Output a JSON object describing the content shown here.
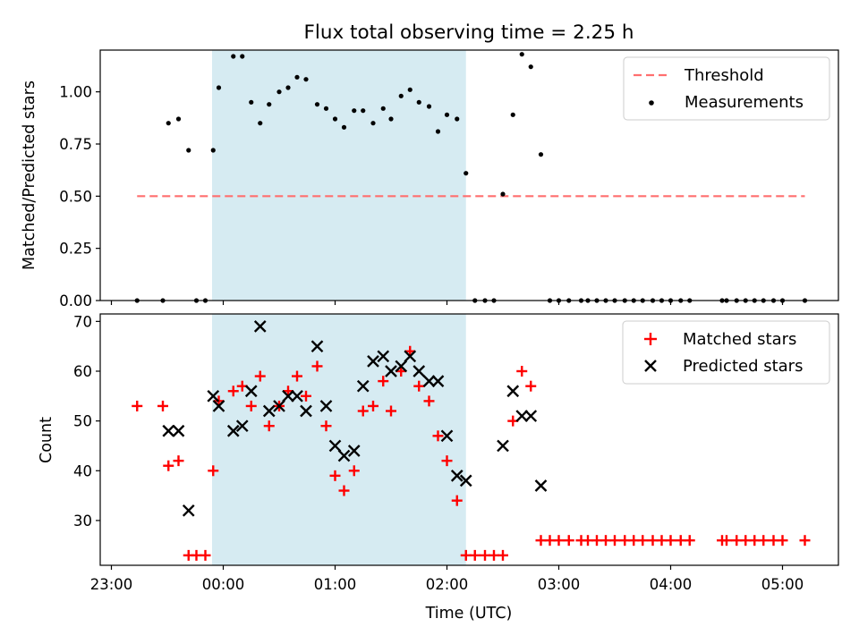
{
  "figure": {
    "title": "Flux total observing time = 2.25 h",
    "xlabel": "Time (UTC)",
    "x_tick_labels": [
      "23:00",
      "00:00",
      "01:00",
      "02:00",
      "03:00",
      "04:00",
      "05:00"
    ]
  },
  "chart_data": [
    {
      "type": "scatter",
      "title": "Flux total observing time = 2.25 h",
      "xlabel": "",
      "ylabel": "Matched/Predicted stars",
      "x_unit": "hours relative to 00:00 UTC",
      "xlim": [
        -1.1,
        5.5
      ],
      "ylim": [
        0.0,
        1.2
      ],
      "y_ticks": [
        0.0,
        0.25,
        0.5,
        0.75,
        1.0
      ],
      "y_tick_labels": [
        "0.00",
        "0.25",
        "0.50",
        "0.75",
        "1.00"
      ],
      "shaded_interval": [
        -0.1,
        2.17
      ],
      "shaded_color": "#add8e6",
      "threshold": {
        "name": "Threshold",
        "value": 0.5,
        "x_range": [
          -0.77,
          5.2
        ],
        "color": "#ff6f6f",
        "style": "dashed"
      },
      "legend": {
        "position": "top-right",
        "entries": [
          "Threshold",
          "Measurements"
        ]
      },
      "series": [
        {
          "name": "Measurements",
          "color": "#000000",
          "marker": "dot",
          "x": [
            -0.77,
            -0.54,
            -0.49,
            -0.4,
            -0.31,
            -0.24,
            -0.16,
            -0.09,
            -0.04,
            0.09,
            0.17,
            0.25,
            0.33,
            0.41,
            0.5,
            0.58,
            0.66,
            0.74,
            0.84,
            0.92,
            1.0,
            1.08,
            1.17,
            1.25,
            1.34,
            1.43,
            1.5,
            1.59,
            1.67,
            1.75,
            1.84,
            1.92,
            2.0,
            2.09,
            2.17,
            2.25,
            2.34,
            2.42,
            2.5,
            2.59,
            2.67,
            2.75,
            2.84,
            2.92,
            3.0,
            3.09,
            3.2,
            3.26,
            3.34,
            3.42,
            3.5,
            3.59,
            3.67,
            3.75,
            3.84,
            3.92,
            4.0,
            4.09,
            4.17,
            4.46,
            4.5,
            4.59,
            4.67,
            4.75,
            4.83,
            4.92,
            5.0,
            5.2
          ],
          "y": [
            0.0,
            0.0,
            0.85,
            0.87,
            0.72,
            0.0,
            0.0,
            0.72,
            1.02,
            1.17,
            1.17,
            0.95,
            0.85,
            0.94,
            1.0,
            1.02,
            1.07,
            1.06,
            0.94,
            0.92,
            0.87,
            0.83,
            0.91,
            0.91,
            0.85,
            0.92,
            0.87,
            0.98,
            1.01,
            0.95,
            0.93,
            0.81,
            0.89,
            0.87,
            0.61,
            0.0,
            0.0,
            0.0,
            0.51,
            0.89,
            1.18,
            1.12,
            0.7,
            0.0,
            0.0,
            0.0,
            0.0,
            0.0,
            0.0,
            0.0,
            0.0,
            0.0,
            0.0,
            0.0,
            0.0,
            0.0,
            0.0,
            0.0,
            0.0,
            0.0,
            0.0,
            0.0,
            0.0,
            0.0,
            0.0,
            0.0,
            0.0,
            0.0
          ]
        }
      ]
    },
    {
      "type": "scatter",
      "title": "",
      "xlabel": "Time (UTC)",
      "ylabel": "Count",
      "x_unit": "hours relative to 00:00 UTC",
      "xlim": [
        -1.1,
        5.5
      ],
      "ylim": [
        21,
        71.5
      ],
      "y_ticks": [
        30,
        40,
        50,
        60,
        70
      ],
      "y_tick_labels": [
        "30",
        "40",
        "50",
        "60",
        "70"
      ],
      "x_ticks": [
        -1,
        0,
        1,
        2,
        3,
        4,
        5
      ],
      "x_tick_labels": [
        "23:00",
        "00:00",
        "01:00",
        "02:00",
        "03:00",
        "04:00",
        "05:00"
      ],
      "shaded_interval": [
        -0.1,
        2.17
      ],
      "shaded_color": "#add8e6",
      "legend": {
        "position": "top-right",
        "entries": [
          "Matched stars",
          "Predicted stars"
        ]
      },
      "series": [
        {
          "name": "Matched stars",
          "color": "#ff0000",
          "marker": "plus",
          "x": [
            -0.77,
            -0.54,
            -0.49,
            -0.4,
            -0.31,
            -0.24,
            -0.16,
            -0.09,
            -0.04,
            0.09,
            0.17,
            0.25,
            0.33,
            0.41,
            0.5,
            0.58,
            0.66,
            0.74,
            0.84,
            0.92,
            1.0,
            1.08,
            1.17,
            1.25,
            1.34,
            1.43,
            1.5,
            1.59,
            1.67,
            1.75,
            1.84,
            1.92,
            2.0,
            2.09,
            2.17,
            2.25,
            2.34,
            2.42,
            2.5,
            2.59,
            2.67,
            2.75,
            2.84,
            2.92,
            3.0,
            3.09,
            3.2,
            3.26,
            3.34,
            3.42,
            3.5,
            3.59,
            3.67,
            3.75,
            3.84,
            3.92,
            4.0,
            4.09,
            4.17,
            4.46,
            4.5,
            4.59,
            4.67,
            4.75,
            4.83,
            4.92,
            5.0,
            5.2
          ],
          "y": [
            53,
            53,
            41,
            42,
            23,
            23,
            23,
            40,
            54,
            56,
            57,
            53,
            59,
            49,
            53,
            56,
            59,
            55,
            61,
            49,
            39,
            36,
            40,
            52,
            53,
            58,
            52,
            60,
            64,
            57,
            54,
            47,
            42,
            34,
            23,
            23,
            23,
            23,
            23,
            50,
            60,
            57,
            26,
            26,
            26,
            26,
            26,
            26,
            26,
            26,
            26,
            26,
            26,
            26,
            26,
            26,
            26,
            26,
            26,
            26,
            26,
            26,
            26,
            26,
            26,
            26,
            26,
            26
          ]
        },
        {
          "name": "Predicted stars",
          "color": "#000000",
          "marker": "x",
          "x": [
            -0.49,
            -0.4,
            -0.31,
            -0.09,
            -0.04,
            0.09,
            0.17,
            0.25,
            0.33,
            0.41,
            0.5,
            0.58,
            0.66,
            0.74,
            0.84,
            0.92,
            1.0,
            1.08,
            1.17,
            1.25,
            1.34,
            1.43,
            1.5,
            1.59,
            1.67,
            1.75,
            1.84,
            1.92,
            2.0,
            2.09,
            2.17,
            2.5,
            2.59,
            2.67,
            2.75,
            2.84
          ],
          "y": [
            48,
            48,
            32,
            55,
            53,
            48,
            49,
            56,
            69,
            52,
            53,
            55,
            55,
            52,
            65,
            53,
            45,
            43,
            44,
            57,
            62,
            63,
            60,
            61,
            63,
            60,
            58,
            58,
            47,
            39,
            38,
            45,
            56,
            51,
            51,
            37
          ]
        }
      ]
    }
  ]
}
